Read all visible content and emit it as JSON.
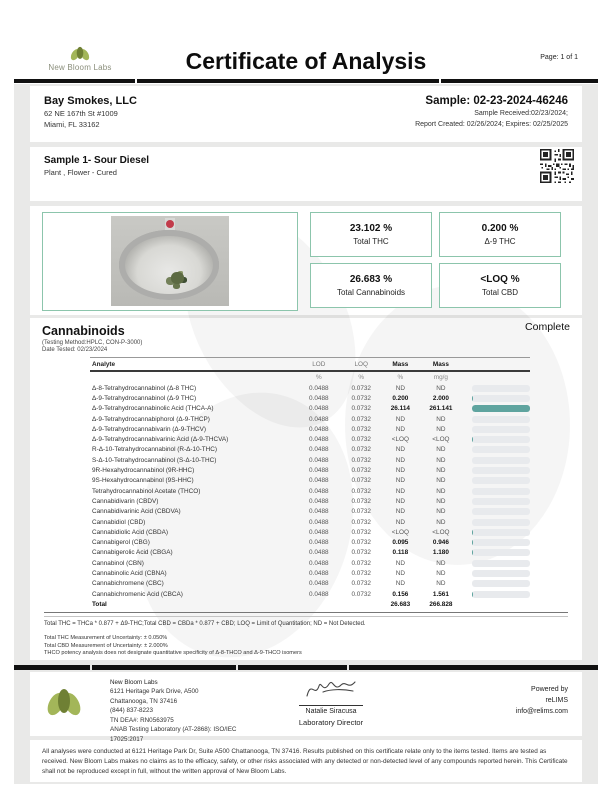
{
  "header": {
    "logo_text": "New Bloom Labs",
    "title": "Certificate of Analysis",
    "page_label": "Page: 1 of 1"
  },
  "client": {
    "name": "Bay Smokes, LLC",
    "address_line1": "62 NE 167th St #1009",
    "address_line2": "Miami, FL 33162",
    "sample_id": "Sample: 02-23-2024-46246",
    "received": "Sample Received:02/23/2024;",
    "report": "Report Created: 02/26/2024; Expires: 02/25/2025"
  },
  "sample": {
    "title": "Sample 1- Sour Diesel",
    "subtitle": "Plant , Flower - Cured"
  },
  "summary": {
    "boxes": [
      {
        "value": "23.102 %",
        "label": "Total THC"
      },
      {
        "value": "0.200 %",
        "label": "Δ-9 THC"
      },
      {
        "value": "26.683 %",
        "label": "Total Cannabinoids"
      },
      {
        "value": "<LOQ %",
        "label": "Total CBD"
      }
    ]
  },
  "cannabinoids": {
    "title": "Cannabinoids",
    "status": "Complete",
    "method": "(Testing Method:HPLC, CON-P-3000)",
    "date_tested": "Date Tested: 02/23/2024",
    "columns": {
      "analyte": "Analyte",
      "lod": "LOD",
      "loq": "LOQ",
      "mass_pct": "Mass",
      "mass_mgg": "Mass"
    },
    "units": {
      "lod": "%",
      "loq": "%",
      "mass_pct": "%",
      "mass_mgg": "mg/g"
    },
    "rows": [
      {
        "analyte": "Δ-8-Tetrahydrocannabinol (Δ-8 THC)",
        "lod": "0.0488",
        "loq": "0.0732",
        "mass_pct": "ND",
        "mass_mgg": "ND",
        "emph": false,
        "bar": 0
      },
      {
        "analyte": "Δ-9-Tetrahydrocannabinol (Δ-9 THC)",
        "lod": "0.0488",
        "loq": "0.0732",
        "mass_pct": "0.200",
        "mass_mgg": "2.000",
        "emph": true,
        "bar": 2
      },
      {
        "analyte": "Δ-9-Tetrahydrocannabinolic Acid (THCA-A)",
        "lod": "0.0488",
        "loq": "0.0732",
        "mass_pct": "26.114",
        "mass_mgg": "261.141",
        "emph": true,
        "bar": 100
      },
      {
        "analyte": "Δ-9-Tetrahydrocannabiphorol (Δ-9-THCP)",
        "lod": "0.0488",
        "loq": "0.0732",
        "mass_pct": "ND",
        "mass_mgg": "ND",
        "emph": false,
        "bar": 0
      },
      {
        "analyte": "Δ-9-Tetrahydrocannabivarin (Δ-9-THCV)",
        "lod": "0.0488",
        "loq": "0.0732",
        "mass_pct": "ND",
        "mass_mgg": "ND",
        "emph": false,
        "bar": 0
      },
      {
        "analyte": "Δ-9-Tetrahydrocannabivarinic Acid (Δ-9-THCVA)",
        "lod": "0.0488",
        "loq": "0.0732",
        "mass_pct": "<LOQ",
        "mass_mgg": "<LOQ",
        "emph": false,
        "bar": 2
      },
      {
        "analyte": "R-Δ-10-Tetrahydrocannabinol (R-Δ-10-THC)",
        "lod": "0.0488",
        "loq": "0.0732",
        "mass_pct": "ND",
        "mass_mgg": "ND",
        "emph": false,
        "bar": 0
      },
      {
        "analyte": "S-Δ-10-Tetrahydrocannabinol (S-Δ-10-THC)",
        "lod": "0.0488",
        "loq": "0.0732",
        "mass_pct": "ND",
        "mass_mgg": "ND",
        "emph": false,
        "bar": 0
      },
      {
        "analyte": "9R-Hexahydrocannabinol (9R-HHC)",
        "lod": "0.0488",
        "loq": "0.0732",
        "mass_pct": "ND",
        "mass_mgg": "ND",
        "emph": false,
        "bar": 0
      },
      {
        "analyte": "9S-Hexahydrocannabinol (9S-HHC)",
        "lod": "0.0488",
        "loq": "0.0732",
        "mass_pct": "ND",
        "mass_mgg": "ND",
        "emph": false,
        "bar": 0
      },
      {
        "analyte": "Tetrahydrocannabinol Acetate (THCO)",
        "lod": "0.0488",
        "loq": "0.0732",
        "mass_pct": "ND",
        "mass_mgg": "ND",
        "emph": false,
        "bar": 0
      },
      {
        "analyte": "Cannabidivarin (CBDV)",
        "lod": "0.0488",
        "loq": "0.0732",
        "mass_pct": "ND",
        "mass_mgg": "ND",
        "emph": false,
        "bar": 0
      },
      {
        "analyte": "Cannabidivarinic Acid (CBDVA)",
        "lod": "0.0488",
        "loq": "0.0732",
        "mass_pct": "ND",
        "mass_mgg": "ND",
        "emph": false,
        "bar": 0
      },
      {
        "analyte": "Cannabidiol (CBD)",
        "lod": "0.0488",
        "loq": "0.0732",
        "mass_pct": "ND",
        "mass_mgg": "ND",
        "emph": false,
        "bar": 0
      },
      {
        "analyte": "Cannabidiolic Acid (CBDA)",
        "lod": "0.0488",
        "loq": "0.0732",
        "mass_pct": "<LOQ",
        "mass_mgg": "<LOQ",
        "emph": false,
        "bar": 2
      },
      {
        "analyte": "Cannabigerol (CBG)",
        "lod": "0.0488",
        "loq": "0.0732",
        "mass_pct": "0.095",
        "mass_mgg": "0.946",
        "emph": true,
        "bar": 2
      },
      {
        "analyte": "Cannabigerolic Acid (CBGA)",
        "lod": "0.0488",
        "loq": "0.0732",
        "mass_pct": "0.118",
        "mass_mgg": "1.180",
        "emph": true,
        "bar": 2
      },
      {
        "analyte": "Cannabinol (CBN)",
        "lod": "0.0488",
        "loq": "0.0732",
        "mass_pct": "ND",
        "mass_mgg": "ND",
        "emph": false,
        "bar": 0
      },
      {
        "analyte": "Cannabinolic Acid (CBNA)",
        "lod": "0.0488",
        "loq": "0.0732",
        "mass_pct": "ND",
        "mass_mgg": "ND",
        "emph": false,
        "bar": 0
      },
      {
        "analyte": "Cannabichromene (CBC)",
        "lod": "0.0488",
        "loq": "0.0732",
        "mass_pct": "ND",
        "mass_mgg": "ND",
        "emph": false,
        "bar": 0
      },
      {
        "analyte": "Cannabichromenic Acid (CBCA)",
        "lod": "0.0488",
        "loq": "0.0732",
        "mass_pct": "0.156",
        "mass_mgg": "1.561",
        "emph": true,
        "bar": 2
      }
    ],
    "total": {
      "label": "Total",
      "mass_pct": "26.683",
      "mass_mgg": "266.828"
    },
    "footnote": "Total THC = THCa * 0.877 + Δ9-THC;Total CBD = CBDa * 0.877 + CBD; LOQ = Limit of Quantitation; ND = Not Detected.",
    "notes": [
      "Total THC Measurement of Uncertainty: ± 0.050%",
      "Total CBD Measurement of Uncertainty: ± 2.000%",
      "THCO potency analysis does not designate quantitative specificity of Δ-8-THCO and Δ-9-THCO isomers"
    ]
  },
  "footer": {
    "lab_name": "New Bloom Labs",
    "address": [
      "6121 Heritage Park Drive, A500",
      "Chattanooga, TN 37416",
      "(844) 837-8223",
      "TN DEA#: RN0563975",
      "ANAB Testing Laboratory (AT-2868): ISO/IEC",
      "17025:2017"
    ],
    "signer_name": "Natalie Siracusa",
    "signer_title": "Laboratory Director",
    "powered_by": [
      "Powered by",
      "reLIMS",
      "info@relims.com"
    ]
  },
  "disclaimer": "All analyses were conducted at 6121 Heritage Park Dr, Suite A500 Chattanooga, TN 37416. Results published on this certificate relate only to the items tested. Items are tested as received. New Bloom Labs makes no claims as to the efficacy, safety, or other risks associated with any detected or non-detected level of any compounds reported herein. This Certificate shall not be reproduced except in full, without the written approval of New Bloom Labs.",
  "colors": {
    "accent_teal": "#5fa49f",
    "box_border": "#8cc5ac",
    "logo_green": "#a3b659",
    "logo_olive": "#6f8034"
  }
}
